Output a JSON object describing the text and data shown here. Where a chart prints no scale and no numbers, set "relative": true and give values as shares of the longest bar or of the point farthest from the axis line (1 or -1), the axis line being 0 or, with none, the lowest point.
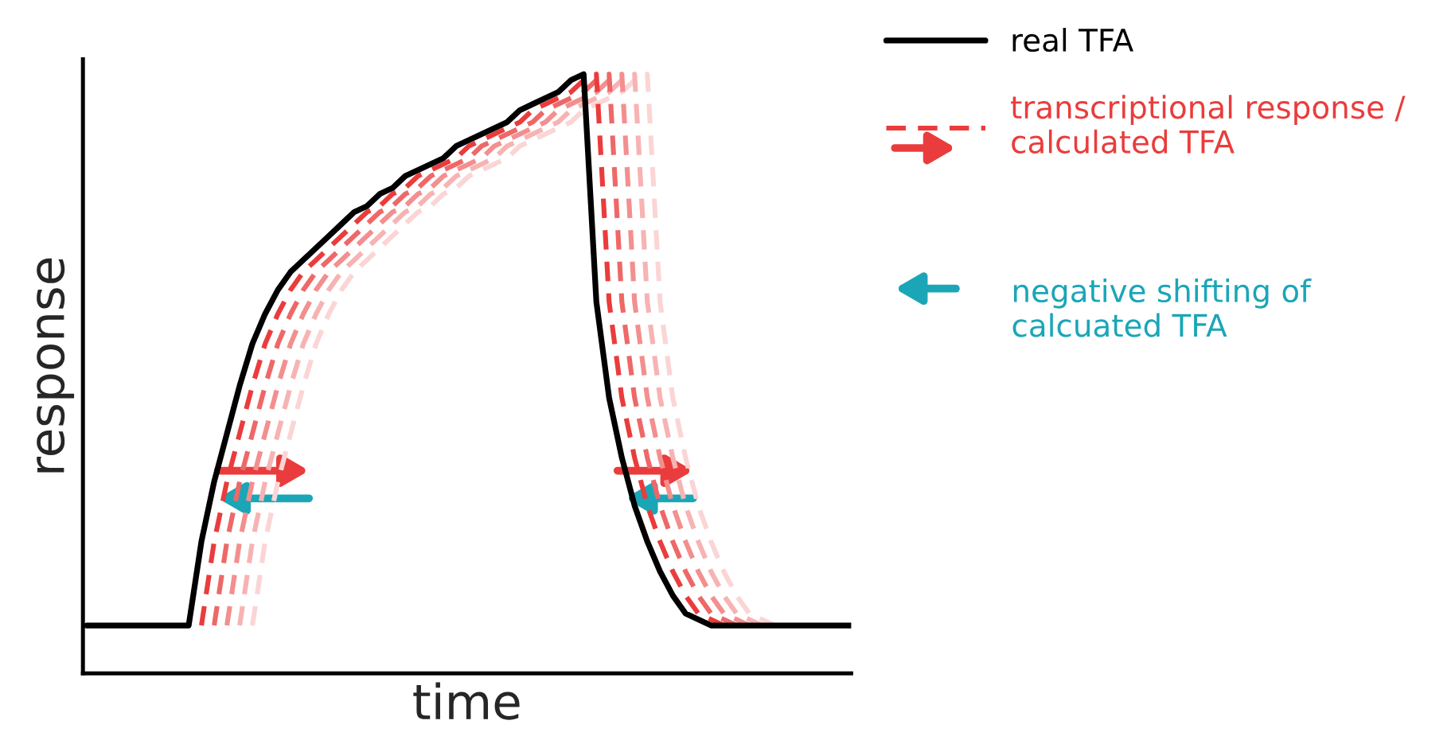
{
  "chart_data": {
    "type": "line",
    "relative": true,
    "xlabel": "time",
    "ylabel": "response",
    "legend": "right",
    "line_style": "solid",
    "categories": [
      null,
      null,
      null,
      null,
      null,
      null,
      null,
      null,
      null,
      null,
      null,
      null,
      null,
      null,
      null,
      null,
      null,
      null,
      null,
      null,
      null,
      null,
      null,
      null,
      null,
      null,
      null,
      null,
      null,
      null,
      null,
      null,
      null,
      null,
      null,
      null,
      null,
      null,
      null,
      null,
      null,
      null,
      null,
      null,
      null,
      null,
      null,
      null,
      null,
      null,
      null,
      null,
      null,
      null,
      null,
      null,
      null,
      null,
      null,
      null,
      null
    ],
    "series": [
      {
        "color": "#fbd5d5",
        "line_style": "dashed",
        "values": [
          null,
          null,
          null,
          null,
          null,
          null,
          null,
          null,
          null,
          null,
          null,
          null,
          null,
          0.08,
          0.22,
          0.32,
          0.4,
          0.48,
          0.55,
          0.6,
          0.64,
          0.67,
          0.69,
          0.71,
          0.73,
          0.75,
          0.77,
          0.78,
          0.8,
          0.81,
          0.83,
          0.84,
          0.85,
          0.86,
          0.88,
          0.89,
          0.9,
          0.91,
          0.92,
          0.94,
          0.95,
          0.96,
          0.97,
          0.99,
          1.0,
          0.62,
          0.46,
          0.36,
          0.28,
          0.22,
          0.17,
          0.13,
          0.1,
          0.09,
          0.08,
          null,
          null,
          null,
          null,
          null,
          null
        ]
      },
      {
        "color": "#f7b3b3",
        "line_style": "dashed",
        "values": [
          null,
          null,
          null,
          null,
          null,
          null,
          null,
          null,
          null,
          null,
          null,
          null,
          0.08,
          0.22,
          0.32,
          0.4,
          0.48,
          0.55,
          0.6,
          0.64,
          0.67,
          0.69,
          0.71,
          0.73,
          0.75,
          0.77,
          0.78,
          0.8,
          0.81,
          0.83,
          0.84,
          0.85,
          0.86,
          0.88,
          0.89,
          0.9,
          0.91,
          0.92,
          0.94,
          0.95,
          0.96,
          0.97,
          0.99,
          1.0,
          0.62,
          0.46,
          0.36,
          0.28,
          0.22,
          0.17,
          0.13,
          0.1,
          0.09,
          0.08,
          null,
          null,
          null,
          null,
          null,
          null,
          null
        ]
      },
      {
        "color": "#f38f8f",
        "line_style": "dashed",
        "values": [
          null,
          null,
          null,
          null,
          null,
          null,
          null,
          null,
          null,
          null,
          null,
          0.08,
          0.22,
          0.32,
          0.4,
          0.48,
          0.55,
          0.6,
          0.64,
          0.67,
          0.69,
          0.71,
          0.73,
          0.75,
          0.77,
          0.78,
          0.8,
          0.81,
          0.83,
          0.84,
          0.85,
          0.86,
          0.88,
          0.89,
          0.9,
          0.91,
          0.92,
          0.94,
          0.95,
          0.96,
          0.97,
          0.99,
          1.0,
          0.62,
          0.46,
          0.36,
          0.28,
          0.22,
          0.17,
          0.13,
          0.1,
          0.09,
          0.08,
          null,
          null,
          null,
          null,
          null,
          null,
          null,
          null
        ]
      },
      {
        "color": "#ee6868",
        "line_style": "dashed",
        "values": [
          null,
          null,
          null,
          null,
          null,
          null,
          null,
          null,
          null,
          null,
          0.08,
          0.22,
          0.32,
          0.4,
          0.48,
          0.55,
          0.6,
          0.64,
          0.67,
          0.69,
          0.71,
          0.73,
          0.75,
          0.77,
          0.78,
          0.8,
          0.81,
          0.83,
          0.84,
          0.85,
          0.86,
          0.88,
          0.89,
          0.9,
          0.91,
          0.92,
          0.94,
          0.95,
          0.96,
          0.97,
          0.99,
          1.0,
          0.62,
          0.46,
          0.36,
          0.28,
          0.22,
          0.17,
          0.13,
          0.1,
          0.09,
          0.08,
          null,
          null,
          null,
          null,
          null,
          null,
          null,
          null,
          null
        ]
      },
      {
        "name": "transcriptional response /\ncalculated TFA",
        "color": "#ea3c3c",
        "line_style": "dashed",
        "values": [
          null,
          null,
          null,
          null,
          null,
          null,
          null,
          null,
          null,
          0.08,
          0.22,
          0.32,
          0.4,
          0.48,
          0.55,
          0.6,
          0.64,
          0.67,
          0.69,
          0.71,
          0.73,
          0.75,
          0.77,
          0.78,
          0.8,
          0.81,
          0.83,
          0.84,
          0.85,
          0.86,
          0.88,
          0.89,
          0.9,
          0.91,
          0.92,
          0.94,
          0.95,
          0.96,
          0.97,
          0.99,
          1.0,
          0.62,
          0.46,
          0.36,
          0.28,
          0.22,
          0.17,
          0.13,
          0.1,
          0.09,
          0.08,
          null,
          null,
          null,
          null,
          null,
          null,
          null,
          null,
          null,
          null
        ]
      },
      {
        "name": "real TFA",
        "color": "#000000",
        "values": [
          0.08,
          0.08,
          0.08,
          0.08,
          0.08,
          0.08,
          0.08,
          0.08,
          0.08,
          0.22,
          0.32,
          0.4,
          0.48,
          0.55,
          0.6,
          0.64,
          0.67,
          0.69,
          0.71,
          0.73,
          0.75,
          0.77,
          0.78,
          0.8,
          0.81,
          0.83,
          0.84,
          0.85,
          0.86,
          0.88,
          0.89,
          0.9,
          0.91,
          0.92,
          0.94,
          0.95,
          0.96,
          0.97,
          0.99,
          1.0,
          0.62,
          0.46,
          0.36,
          0.28,
          0.22,
          0.17,
          0.13,
          0.1,
          0.09,
          0.08,
          0.08,
          0.08,
          0.08,
          0.08,
          0.08,
          0.08,
          0.08,
          0.08,
          0.08,
          0.08,
          0.08
        ]
      }
    ],
    "annotations": [
      "negative shifting of\ncalcuated TFA"
    ]
  }
}
